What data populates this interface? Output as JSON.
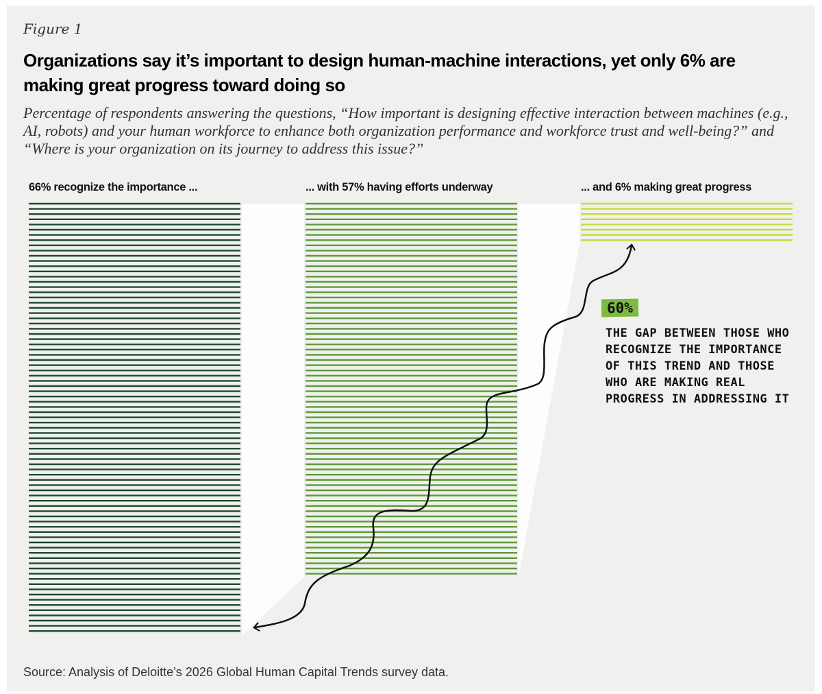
{
  "figure_label": "Figure 1",
  "title": "Organizations say it’s important to design human-machine interactions, yet only 6% are making great progress toward doing so",
  "subtitle": "Percentage of respondents answering the questions, “How important is designing effective interaction between machines (e.g., AI, robots) and your human workforce to enhance both organization performance and workforce trust and well-being?” and “Where is your organization on its journey to address this issue?”",
  "chart_data": {
    "type": "bar",
    "categories": [
      "66% recognize the importance ...",
      "... with 57% having efforts underway",
      "... and 6% making great progress"
    ],
    "values": [
      66,
      57,
      6
    ],
    "unit": "%",
    "colors": [
      "#1f4a2e",
      "#5e9a38",
      "#c9d93a"
    ],
    "annotation": {
      "value": "60%",
      "text": "The gap between those who recognize the importance of this trend and those who are making real progress in addressing it",
      "badge_color": "#7cbb40"
    }
  },
  "source": "Source: Analysis of Deloitte’s 2026 Global Human Capital Trends survey data."
}
